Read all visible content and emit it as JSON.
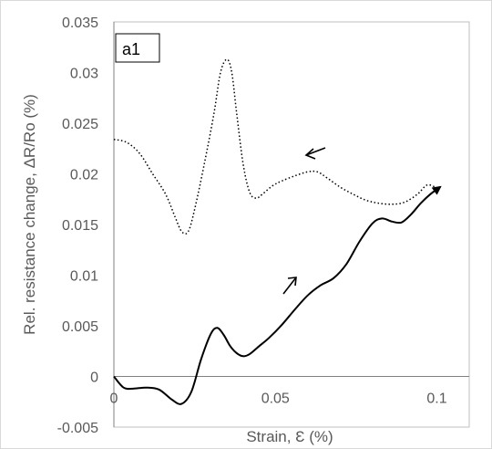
{
  "chart_data": {
    "type": "line",
    "panel_label": "a1",
    "xlabel": "Strain, Ɛ (%)",
    "ylabel": "Rel. resistance change, ΔR/Ro (%)",
    "xlim": [
      0,
      0.11
    ],
    "ylim": [
      -0.005,
      0.035
    ],
    "x_ticks": [
      0,
      0.05,
      0.1
    ],
    "x_tick_labels": [
      "0",
      "0.05",
      "0.1"
    ],
    "y_ticks": [
      -0.005,
      0,
      0.005,
      0.01,
      0.015,
      0.02,
      0.025,
      0.03,
      0.035
    ],
    "y_tick_labels": [
      "-0.005",
      "0",
      "0.005",
      "0.01",
      "0.015",
      "0.02",
      "0.025",
      "0.03",
      "0.035"
    ],
    "grid": false,
    "series": [
      {
        "style": "solid",
        "color": "#000000",
        "end_arrow": true,
        "annotation_arrow": "up-right",
        "x": [
          0,
          0.003,
          0.006,
          0.01,
          0.014,
          0.018,
          0.021,
          0.024,
          0.027,
          0.03,
          0.032,
          0.034,
          0.036,
          0.038,
          0.04,
          0.042,
          0.045,
          0.048,
          0.052,
          0.056,
          0.06,
          0.064,
          0.068,
          0.072,
          0.076,
          0.08,
          0.083,
          0.086,
          0.089,
          0.092,
          0.095,
          0.098,
          0.101
        ],
        "y": [
          0.0,
          -0.0011,
          -0.0012,
          -0.0011,
          -0.0013,
          -0.0023,
          -0.0027,
          -0.0015,
          0.0017,
          0.0042,
          0.0048,
          0.0041,
          0.003,
          0.0023,
          0.002,
          0.0022,
          0.003,
          0.0038,
          0.0051,
          0.0066,
          0.008,
          0.009,
          0.0097,
          0.0111,
          0.0133,
          0.0151,
          0.0156,
          0.0153,
          0.0152,
          0.016,
          0.0171,
          0.018,
          0.0187
        ]
      },
      {
        "style": "dotted",
        "color": "#000000",
        "annotation_arrow": "left",
        "x": [
          0,
          0.004,
          0.008,
          0.012,
          0.016,
          0.019,
          0.021,
          0.023,
          0.025,
          0.028,
          0.031,
          0.033,
          0.035,
          0.0365,
          0.038,
          0.04,
          0.042,
          0.044,
          0.046,
          0.049,
          0.052,
          0.056,
          0.06,
          0.063,
          0.066,
          0.07,
          0.074,
          0.078,
          0.082,
          0.086,
          0.09,
          0.094,
          0.097,
          0.1
        ],
        "y": [
          0.0234,
          0.0231,
          0.022,
          0.02,
          0.018,
          0.0157,
          0.0143,
          0.0143,
          0.0165,
          0.021,
          0.026,
          0.03,
          0.0313,
          0.03,
          0.026,
          0.021,
          0.0182,
          0.0176,
          0.018,
          0.0188,
          0.0193,
          0.0198,
          0.0202,
          0.0202,
          0.0196,
          0.0187,
          0.018,
          0.0174,
          0.0171,
          0.017,
          0.0172,
          0.018,
          0.0189,
          0.0186
        ]
      }
    ]
  }
}
